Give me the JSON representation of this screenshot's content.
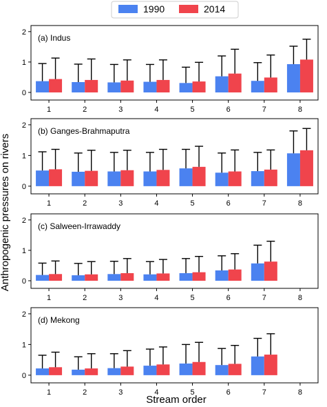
{
  "chart_data": {
    "type": "bar",
    "ylabel": "Anthropogenic pressures on rivers",
    "xlabel": "Stream order",
    "legend": {
      "placement": "top-center",
      "entries": [
        {
          "name": "1990",
          "color": "#4b82f0"
        },
        {
          "name": "2014",
          "color": "#f0444c"
        }
      ]
    },
    "categories": [
      "1",
      "2",
      "3",
      "4",
      "5",
      "6",
      "7",
      "8"
    ],
    "ylim": [
      -0.25,
      2.2
    ],
    "yticks": [
      0,
      1,
      2
    ],
    "panels": [
      {
        "title": "(a) Indus",
        "series": [
          {
            "name": "1990",
            "values": [
              0.37,
              0.34,
              0.33,
              0.35,
              0.31,
              0.53,
              0.38,
              0.93
            ],
            "errors": [
              0.95,
              0.93,
              0.92,
              0.92,
              0.83,
              1.2,
              0.98,
              1.52
            ]
          },
          {
            "name": "2014",
            "values": [
              0.44,
              0.41,
              0.39,
              0.41,
              0.36,
              0.62,
              0.49,
              1.08
            ],
            "errors": [
              1.13,
              1.1,
              1.07,
              1.07,
              0.99,
              1.42,
              1.23,
              1.75
            ]
          }
        ]
      },
      {
        "title": "(b) Ganges-Brahmaputra",
        "series": [
          {
            "name": "1990",
            "values": [
              0.51,
              0.47,
              0.48,
              0.48,
              0.58,
              0.44,
              0.49,
              1.07
            ],
            "errors": [
              1.12,
              1.08,
              1.1,
              1.1,
              1.2,
              1.08,
              1.1,
              1.8
            ]
          },
          {
            "name": "2014",
            "values": [
              0.55,
              0.5,
              0.52,
              0.53,
              0.63,
              0.48,
              0.54,
              1.17
            ],
            "errors": [
              1.2,
              1.17,
              1.17,
              1.2,
              1.3,
              1.18,
              1.18,
              1.88
            ]
          }
        ]
      },
      {
        "title": "(c) Salween-Irrawaddy",
        "series": [
          {
            "name": "1990",
            "values": [
              0.19,
              0.18,
              0.22,
              0.21,
              0.25,
              0.34,
              0.57,
              null
            ],
            "errors": [
              0.58,
              0.57,
              0.64,
              0.63,
              0.73,
              0.82,
              1.17,
              null
            ]
          },
          {
            "name": "2014",
            "values": [
              0.22,
              0.21,
              0.25,
              0.24,
              0.28,
              0.37,
              0.63,
              null
            ],
            "errors": [
              0.65,
              0.63,
              0.73,
              0.7,
              0.8,
              0.89,
              1.3,
              null
            ]
          }
        ]
      },
      {
        "title": "(d) Mekong",
        "series": [
          {
            "name": "1990",
            "values": [
              0.22,
              0.18,
              0.23,
              0.31,
              0.38,
              0.33,
              0.61,
              null
            ],
            "errors": [
              0.65,
              0.6,
              0.7,
              0.85,
              1.0,
              0.87,
              1.2,
              null
            ]
          },
          {
            "name": "2014",
            "values": [
              0.26,
              0.22,
              0.28,
              0.35,
              0.43,
              0.37,
              0.67,
              null
            ],
            "errors": [
              0.75,
              0.7,
              0.8,
              0.92,
              1.07,
              0.97,
              1.35,
              null
            ]
          }
        ]
      }
    ]
  }
}
